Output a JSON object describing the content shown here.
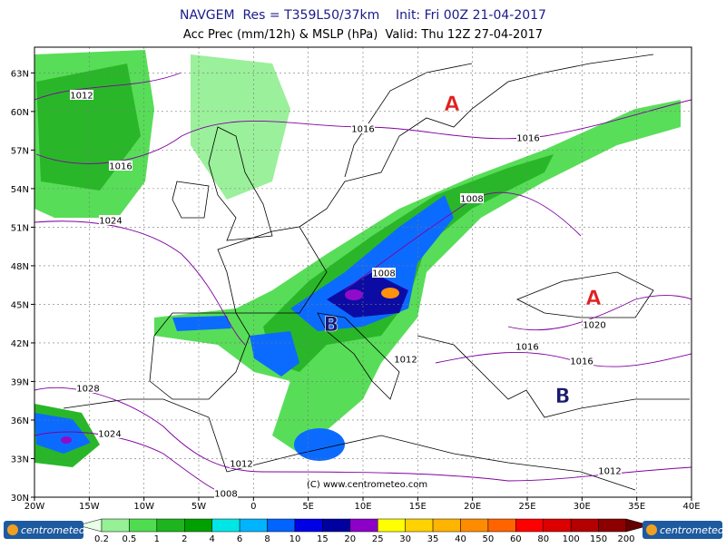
{
  "header": {
    "line1": "NAVGEM  Res = T359L50/37km    Init: Fri 00Z 21-04-2017",
    "line2": "Acc Prec (mm/12h) & MSLP (hPa)  Valid: Thu 12Z 27-04-2017"
  },
  "map": {
    "lat_labels": [
      "63N",
      "60N",
      "57N",
      "54N",
      "51N",
      "48N",
      "45N",
      "42N",
      "39N",
      "36N",
      "33N",
      "30N"
    ],
    "lon_labels": [
      "20W",
      "15W",
      "10W",
      "5W",
      "0",
      "5E",
      "10E",
      "15E",
      "20E",
      "25E",
      "30E",
      "35E",
      "40E"
    ],
    "isobar_labels": [
      1012,
      1016,
      1016,
      1016,
      1008,
      1024,
      1008,
      1020,
      1016,
      1016,
      1012,
      1028,
      1024,
      1012,
      1012,
      1008
    ],
    "pressure_centers": [
      "A",
      "A",
      "B",
      "B"
    ],
    "copyright": "(C) www.centrometeo.com"
  },
  "scale": {
    "labels": [
      0.2,
      0.5,
      1,
      2,
      4,
      6,
      8,
      10,
      15,
      20,
      25,
      30,
      35,
      40,
      50,
      60,
      80,
      100,
      150,
      200
    ],
    "colors": [
      "#e6ffe6",
      "#96f096",
      "#50dc50",
      "#1eb41e",
      "#00a000",
      "#00e6e6",
      "#00b4ff",
      "#0064ff",
      "#0000e6",
      "#0000a0",
      "#8c00c8",
      "#ffff00",
      "#ffd200",
      "#ffb400",
      "#ff8c00",
      "#ff6400",
      "#ff0000",
      "#dc0000",
      "#b40000",
      "#8c0000",
      "#640000"
    ]
  },
  "logos": [
    "centrometeo",
    "centrometeo"
  ]
}
